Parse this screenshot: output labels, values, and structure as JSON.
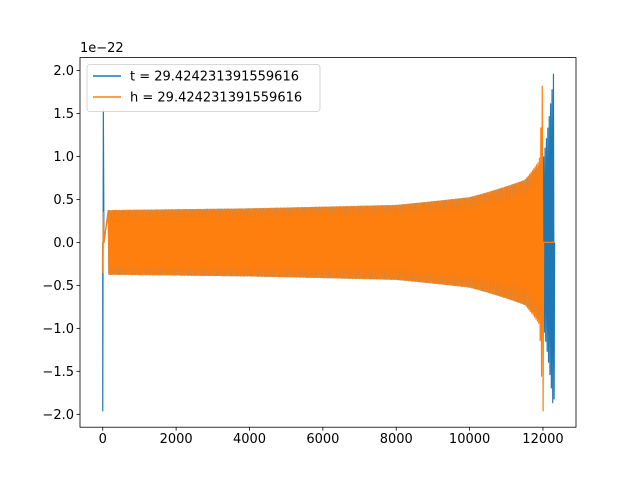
{
  "chart_data": {
    "type": "line",
    "title": "",
    "xlabel": "",
    "ylabel": "",
    "offset_label": "1e−22",
    "xlim": [
      -620,
      12900
    ],
    "ylim": [
      -2.15,
      2.15
    ],
    "xticks": [
      0,
      2000,
      4000,
      6000,
      8000,
      10000,
      12000
    ],
    "xtick_labels": [
      "0",
      "2000",
      "4000",
      "6000",
      "8000",
      "10000",
      "12000"
    ],
    "yticks": [
      -2.0,
      -1.5,
      -1.0,
      -0.5,
      0.0,
      0.5,
      1.0,
      1.5,
      2.0
    ],
    "ytick_labels": [
      "−2.0",
      "−1.5",
      "−1.0",
      "−0.5",
      "0.0",
      "0.5",
      "1.0",
      "1.5",
      "2.0"
    ],
    "grid": false,
    "legend_position": "top-left",
    "series": [
      {
        "name": "t = 29.424231391559616",
        "color": "#1f77b4",
        "x_range": [
          0,
          12300
        ],
        "envelope": {
          "initial_spike": [
            -1.96,
            1.55
          ],
          "amplitude_points": [
            [
              150,
              0.37
            ],
            [
              4000,
              0.39
            ],
            [
              8000,
              0.43
            ],
            [
              10000,
              0.52
            ],
            [
              11500,
              0.72
            ],
            [
              12000,
              0.95
            ],
            [
              12290,
              1.98
            ]
          ],
          "final_min": -1.82
        }
      },
      {
        "name": "h = 29.424231391559616",
        "color": "#ff7f0e",
        "x_range": [
          0,
          12300
        ],
        "envelope": {
          "initial_spike": [
            -0.35,
            0.35
          ],
          "amplitude_points": [
            [
              150,
              0.37
            ],
            [
              4000,
              0.39
            ],
            [
              8000,
              0.43
            ],
            [
              10000,
              0.52
            ],
            [
              11500,
              0.72
            ],
            [
              11900,
              0.95
            ],
            [
              11990,
              1.97
            ]
          ],
          "final_min": -1.96,
          "flat_after": 12000
        }
      }
    ]
  }
}
